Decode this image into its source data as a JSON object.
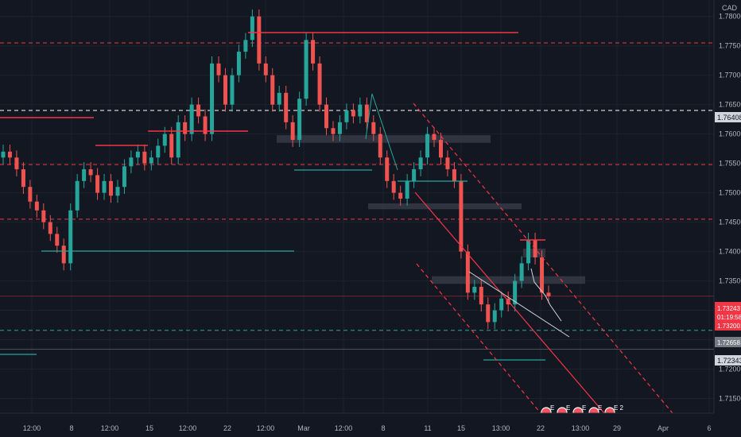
{
  "chart_data": {
    "type": "candlestick",
    "currency": "CAD",
    "ylim": [
      1.7125,
      1.7828
    ],
    "y_ticks": [
      1.715,
      1.72,
      1.725,
      1.73,
      1.735,
      1.74,
      1.745,
      1.75,
      1.755,
      1.76,
      1.765,
      1.77,
      1.775,
      1.78
    ],
    "x_ticks": [
      "12:00",
      "8",
      "12:00",
      "15",
      "12:00",
      "22",
      "12:00",
      "Mar",
      "12:00",
      "8",
      "11",
      "15",
      "13:00",
      "22",
      "13:00",
      "29",
      "Apr",
      "6"
    ],
    "price_badges": {
      "top": "1.76408",
      "current": "1.73243",
      "countdown": "01:19:58",
      "current_low": "1.73200",
      "level1": "1.72658",
      "level2": "1.72343"
    },
    "horizontal_levels": [
      {
        "price": 1.7755,
        "style": "dashed",
        "color": "#f23645"
      },
      {
        "price": 1.764,
        "style": "dashed",
        "color": "#ffffff"
      },
      {
        "price": 1.7548,
        "style": "dashed",
        "color": "#f23645"
      },
      {
        "price": 1.7455,
        "style": "dashed",
        "color": "#f23645"
      },
      {
        "price": 1.7266,
        "style": "dashed",
        "color": "#26a69a"
      }
    ],
    "candles_close": [
      1.757,
      1.756,
      1.754,
      1.751,
      1.7485,
      1.747,
      1.745,
      1.743,
      1.741,
      1.738,
      1.747,
      1.752,
      1.754,
      1.753,
      1.75,
      1.752,
      1.7495,
      1.751,
      1.7545,
      1.756,
      1.757,
      1.755,
      1.756,
      1.758,
      1.76,
      1.756,
      1.762,
      1.76,
      1.765,
      1.763,
      1.76,
      1.772,
      1.77,
      1.765,
      1.77,
      1.774,
      1.776,
      1.78,
      1.772,
      1.77,
      1.765,
      1.767,
      1.762,
      1.759,
      1.766,
      1.776,
      1.772,
      1.765,
      1.761,
      1.76,
      1.762,
      1.764,
      1.763,
      1.765,
      1.762,
      1.76,
      1.756,
      1.752,
      1.75,
      1.749,
      1.752,
      1.754,
      1.756,
      1.76,
      1.759,
      1.756,
      1.754,
      1.752,
      1.74,
      1.733,
      1.734,
      1.731,
      1.728,
      1.73,
      1.732,
      1.731,
      1.735,
      1.738,
      1.742,
      1.739,
      1.733,
      1.7324
    ]
  },
  "drawings": {
    "colors": {
      "red": "#f23645",
      "teal": "#26a69a",
      "white": "#d1d4dc",
      "zone": "#363a45",
      "bull": "#26a69a",
      "bear": "#ef5350"
    }
  },
  "event_badges": [
    "E",
    "E",
    "E",
    "E",
    "E 2"
  ]
}
